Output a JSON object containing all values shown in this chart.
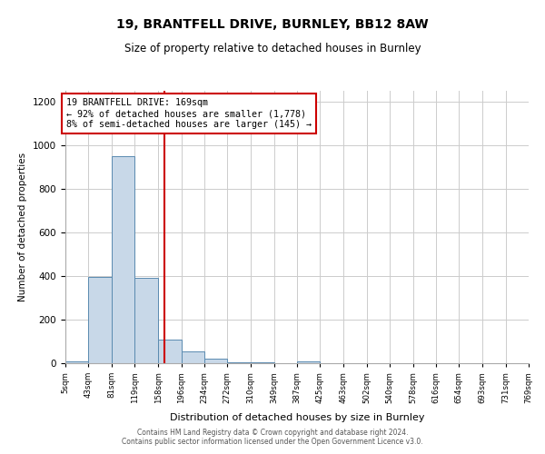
{
  "title": "19, BRANTFELL DRIVE, BURNLEY, BB12 8AW",
  "subtitle": "Size of property relative to detached houses in Burnley",
  "xlabel": "Distribution of detached houses by size in Burnley",
  "ylabel": "Number of detached properties",
  "bar_color": "#c8d8e8",
  "bar_edge_color": "#5a8ab0",
  "bin_edges": [
    5,
    43,
    81,
    119,
    158,
    196,
    234,
    272,
    310,
    349,
    387,
    425,
    463,
    502,
    540,
    578,
    616,
    654,
    693,
    731,
    769
  ],
  "bin_labels": [
    "5sqm",
    "43sqm",
    "81sqm",
    "119sqm",
    "158sqm",
    "196sqm",
    "234sqm",
    "272sqm",
    "310sqm",
    "349sqm",
    "387sqm",
    "425sqm",
    "463sqm",
    "502sqm",
    "540sqm",
    "578sqm",
    "616sqm",
    "654sqm",
    "693sqm",
    "731sqm",
    "769sqm"
  ],
  "bar_heights": [
    10,
    395,
    950,
    390,
    110,
    55,
    20,
    5,
    5,
    0,
    10,
    0,
    0,
    0,
    0,
    0,
    0,
    0,
    0,
    0
  ],
  "property_size": 169,
  "vline_color": "#cc0000",
  "annotation_line1": "19 BRANTFELL DRIVE: 169sqm",
  "annotation_line2": "← 92% of detached houses are smaller (1,778)",
  "annotation_line3": "8% of semi-detached houses are larger (145) →",
  "annotation_box_color": "#cc0000",
  "ylim": [
    0,
    1250
  ],
  "yticks": [
    0,
    200,
    400,
    600,
    800,
    1000,
    1200
  ],
  "footer_line1": "Contains HM Land Registry data © Crown copyright and database right 2024.",
  "footer_line2": "Contains public sector information licensed under the Open Government Licence v3.0.",
  "background_color": "#ffffff",
  "grid_color": "#cccccc"
}
